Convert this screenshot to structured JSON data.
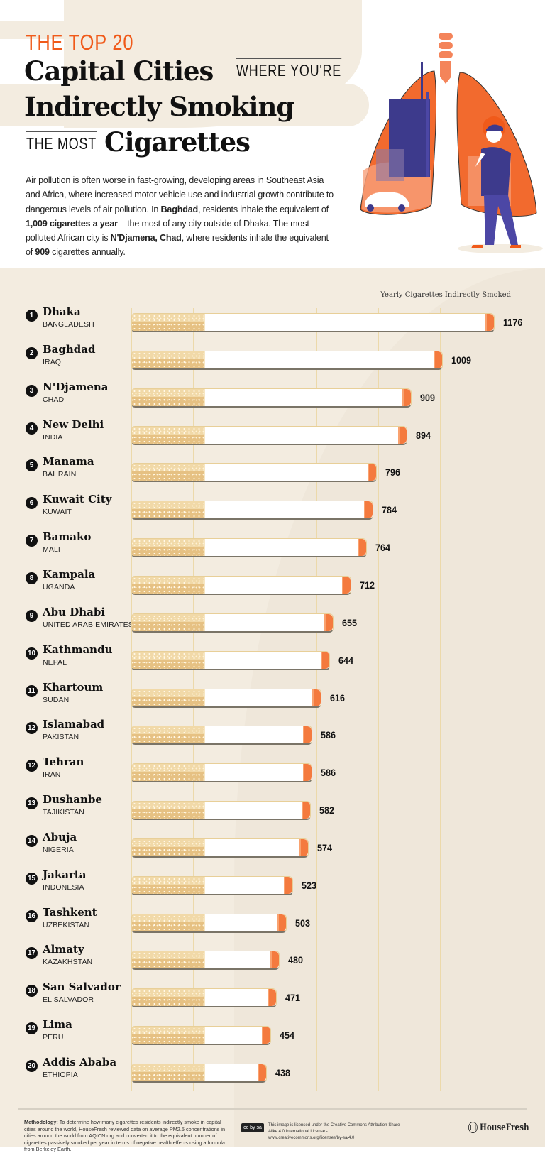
{
  "header": {
    "kicker": "THE TOP 20",
    "line1": "Capital Cities",
    "boxed1": "WHERE YOU'RE",
    "line2": "Indirectly Smoking",
    "boxed2": "THE MOST",
    "line3": "Cigarettes"
  },
  "intro": {
    "p1": "Air pollution is often worse in fast-growing, developing areas in Southeast Asia and Africa, where increased motor vehicle use and industrial growth contribute to dangerous levels of air pollution. In ",
    "b1": "Baghdad",
    "p2": ", residents inhale the equivalent of ",
    "b2": "1,009 cigarettes a year",
    "p3": " – the most of any city outside of Dhaka. The most polluted African city is ",
    "b3": "N'Djamena, Chad",
    "p4": ", where residents inhale the equivalent of ",
    "b4": "909",
    "p5": " cigarettes annually."
  },
  "colors": {
    "accent": "#f05a1a",
    "background": "#f3ece0",
    "filter": "#ebc98a",
    "tip": "#f47a3e",
    "illustration_purple": "#3d3a8c"
  },
  "chart_data": {
    "type": "bar",
    "orientation": "horizontal",
    "value_label": "Yearly Cigarettes Indirectly Smoked",
    "xlim": [
      0,
      1200
    ],
    "grid": true,
    "grid_step": 200,
    "ranks": [
      "1",
      "2",
      "3",
      "4",
      "5",
      "6",
      "7",
      "8",
      "9",
      "10",
      "11",
      "12",
      "12",
      "13",
      "14",
      "15",
      "16",
      "17",
      "18",
      "19",
      "20"
    ],
    "categories": [
      "Dhaka",
      "Baghdad",
      "N'Djamena",
      "New Delhi",
      "Manama",
      "Kuwait City",
      "Bamako",
      "Kampala",
      "Abu Dhabi",
      "Kathmandu",
      "Khartoum",
      "Islamabad",
      "Tehran",
      "Dushanbe",
      "Abuja",
      "Jakarta",
      "Tashkent",
      "Almaty",
      "San Salvador",
      "Lima",
      "Addis Ababa"
    ],
    "countries": [
      "BANGLADESH",
      "IRAQ",
      "CHAD",
      "INDIA",
      "BAHRAIN",
      "KUWAIT",
      "MALI",
      "UGANDA",
      "UNITED ARAB EMIRATES",
      "NEPAL",
      "SUDAN",
      "PAKISTAN",
      "IRAN",
      "TAJIKISTAN",
      "NIGERIA",
      "INDONESIA",
      "UZBEKISTAN",
      "KAZAKHSTAN",
      "EL SALVADOR",
      "PERU",
      "ETHIOPIA"
    ],
    "values": [
      1176,
      1009,
      909,
      894,
      796,
      784,
      764,
      712,
      655,
      644,
      616,
      586,
      586,
      582,
      574,
      523,
      503,
      480,
      471,
      454,
      438
    ]
  },
  "footer": {
    "methodology_label": "Methodology:",
    "methodology_text": " To determine how many cigarettes residents indirectly smoke in capital cities around the world, HouseFresh reviewed data on average PM2.5 concentrations in cities around the world from AQICN.org and converted it to the equivalent number of cigarettes passively smoked per year in terms of negative health effects using a formula from Berkeley Earth.",
    "cc_badge": "cc by sa",
    "license": "This image is licensed under the Creative Commons Attribution-Share Alike 4.0 International License - www.creativecommons.org/licenses/by-sa/4.0",
    "brand": "HouseFresh"
  }
}
